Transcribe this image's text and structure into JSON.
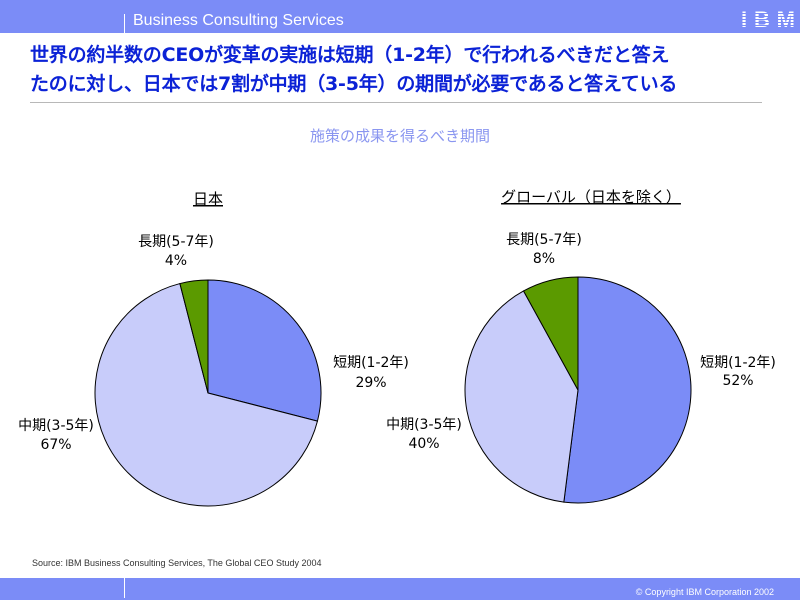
{
  "header": {
    "section_title": "Business Consulting Services",
    "logo_text": "IBM"
  },
  "headline": {
    "line1": "世界の約半数のCEOが変革の実施は短期（1-2年）で行われるべきだと答え",
    "line2": "たのに対し、日本では7割が中期（3-5年）の期間が必要であると答えている"
  },
  "subtitle": "施策の成果を得るべき期間",
  "colors": {
    "short": "#7b8cf7",
    "mid": "#c8ccfa",
    "long": "#5b9a00",
    "headline": "#0b22d6",
    "bar": "#7b8cf7"
  },
  "chart_data": [
    {
      "type": "pie",
      "title": "日本",
      "slices": [
        {
          "label": "短期(1-2年)",
          "value": 29,
          "value_label": "29%",
          "color": "#7b8cf7"
        },
        {
          "label": "中期(3-5年)",
          "value": 67,
          "value_label": "67%",
          "color": "#c8ccfa"
        },
        {
          "label": "長期(5-7年)",
          "value": 4,
          "value_label": "4%",
          "color": "#5b9a00"
        }
      ]
    },
    {
      "type": "pie",
      "title": "グローバル（日本を除く）",
      "slices": [
        {
          "label": "短期(1-2年)",
          "value": 52,
          "value_label": "52%",
          "color": "#7b8cf7"
        },
        {
          "label": "中期(3-5年)",
          "value": 40,
          "value_label": "40%",
          "color": "#c8ccfa"
        },
        {
          "label": "長期(5-7年)",
          "value": 8,
          "value_label": "8%",
          "color": "#5b9a00"
        }
      ]
    }
  ],
  "footer": {
    "source": "Source: IBM Business Consulting Services, The Global CEO Study 2004",
    "copyright": "© Copyright IBM Corporation 2002"
  }
}
